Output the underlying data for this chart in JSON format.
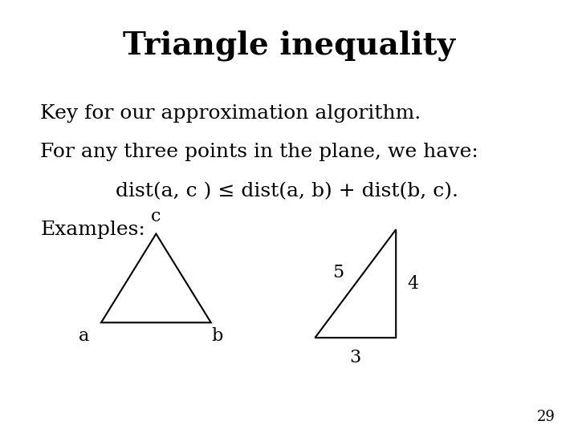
{
  "title": "Triangle inequality",
  "title_fontsize": 28,
  "body_fontsize": 18,
  "small_fontsize": 16,
  "background_color": "#ffffff",
  "text_color": "#000000",
  "line1": "Key for our approximation algorithm.",
  "line2": "For any three points in the plane, we have:",
  "line3": "dist(a, c ) ≤ dist(a, b) + dist(b, c).",
  "line4": "Examples:",
  "slide_number": "29",
  "tri1": {
    "vx": [
      0.175,
      0.365,
      0.27
    ],
    "vy": [
      0.255,
      0.255,
      0.46
    ],
    "label_a": [
      0.145,
      0.245
    ],
    "label_b": [
      0.375,
      0.245
    ],
    "label_c": [
      0.27,
      0.48
    ]
  },
  "tri2": {
    "vx": [
      0.545,
      0.685,
      0.685
    ],
    "vy": [
      0.22,
      0.22,
      0.47
    ],
    "label_3": [
      0.615,
      0.195
    ],
    "label_4": [
      0.705,
      0.345
    ],
    "label_5": [
      0.595,
      0.37
    ]
  }
}
